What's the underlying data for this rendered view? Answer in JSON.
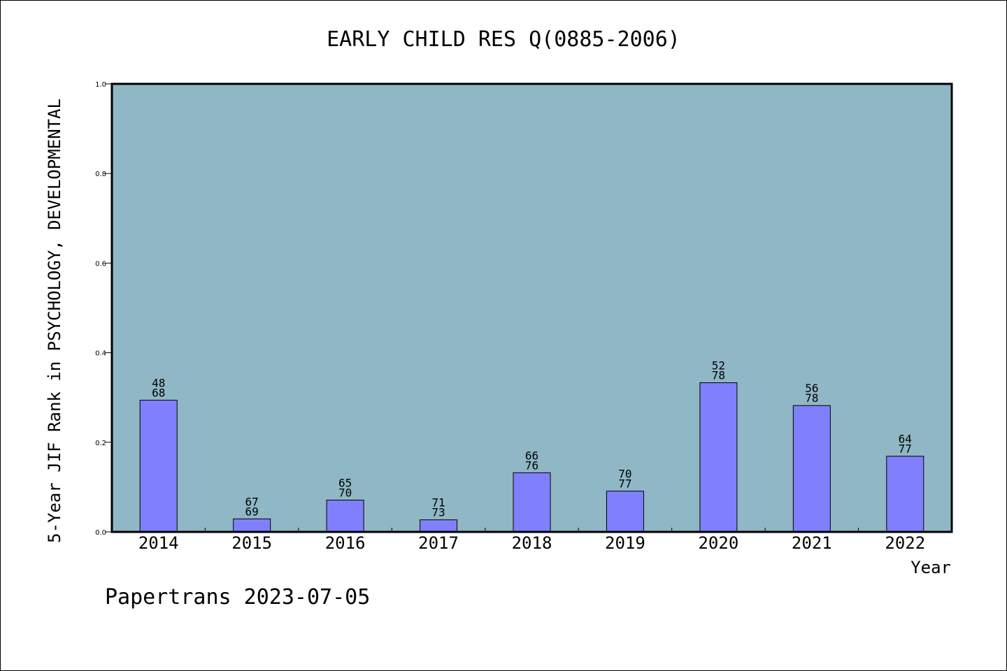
{
  "footer": "Papertrans 2023-07-05",
  "chart_data": {
    "type": "bar",
    "title": "EARLY CHILD RES Q(0885-2006)",
    "xlabel": "Year",
    "ylabel": "5-Year JIF Rank in PSYCHOLOGY, DEVELOPMENTAL",
    "ylim": [
      0.0,
      1.0
    ],
    "yticks": [
      "0.0",
      "0.2",
      "0.4",
      "0.6",
      "0.8",
      "1.0"
    ],
    "grid": false,
    "plot_bg_color": "#8fb7c5",
    "bar_color": "#8080ff",
    "categories": [
      "2014",
      "2015",
      "2016",
      "2017",
      "2018",
      "2019",
      "2020",
      "2021",
      "2022"
    ],
    "values": [
      0.294,
      0.029,
      0.071,
      0.027,
      0.132,
      0.091,
      0.333,
      0.282,
      0.169
    ],
    "rank_labels": [
      {
        "rank": "48",
        "total": "68"
      },
      {
        "rank": "67",
        "total": "69"
      },
      {
        "rank": "65",
        "total": "70"
      },
      {
        "rank": "71",
        "total": "73"
      },
      {
        "rank": "66",
        "total": "76"
      },
      {
        "rank": "70",
        "total": "77"
      },
      {
        "rank": "52",
        "total": "78"
      },
      {
        "rank": "56",
        "total": "78"
      },
      {
        "rank": "64",
        "total": "77"
      }
    ]
  }
}
